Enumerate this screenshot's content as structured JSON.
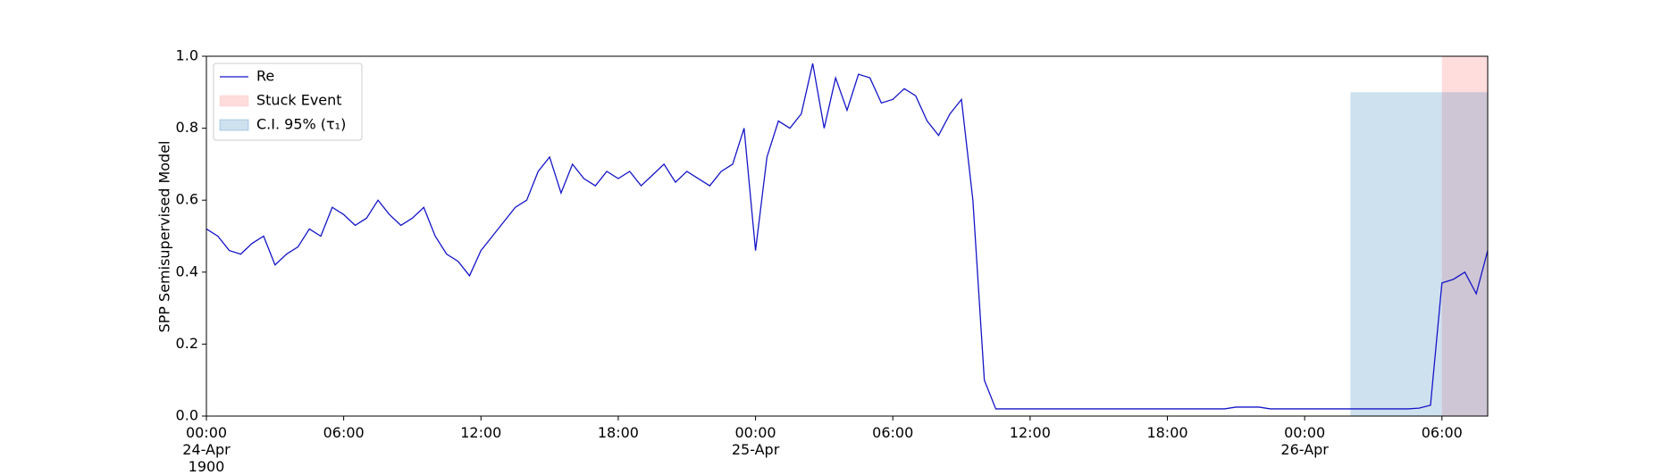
{
  "chart_data": {
    "type": "line",
    "ylabel": "SPP Semisupervised Model",
    "xlim": [
      "1900-04-24T00:00",
      "1900-04-26T08:00"
    ],
    "xticks": [
      {
        "value": "1900-04-24T00:00",
        "label": "00:00\n24-Apr\n1900"
      },
      {
        "value": "1900-04-24T06:00",
        "label": "06:00"
      },
      {
        "value": "1900-04-24T12:00",
        "label": "12:00"
      },
      {
        "value": "1900-04-24T18:00",
        "label": "18:00"
      },
      {
        "value": "1900-04-25T00:00",
        "label": "00:00\n25-Apr"
      },
      {
        "value": "1900-04-25T06:00",
        "label": "06:00"
      },
      {
        "value": "1900-04-25T12:00",
        "label": "12:00"
      },
      {
        "value": "1900-04-25T18:00",
        "label": "18:00"
      },
      {
        "value": "1900-04-26T00:00",
        "label": "00:00\n26-Apr"
      },
      {
        "value": "1900-04-26T06:00",
        "label": "06:00"
      }
    ],
    "ylim": [
      0,
      1
    ],
    "yticks": [
      {
        "value": 0,
        "label": "0.0"
      },
      0.2,
      0.4,
      0.6,
      0.8,
      {
        "value": 1,
        "label": "1.0"
      }
    ],
    "legend": "upper left",
    "x": [
      "1900-04-24T00:00",
      "1900-04-24T00:30",
      "1900-04-24T01:00",
      "1900-04-24T01:30",
      "1900-04-24T02:00",
      "1900-04-24T02:30",
      "1900-04-24T03:00",
      "1900-04-24T03:30",
      "1900-04-24T04:00",
      "1900-04-24T04:30",
      "1900-04-24T05:00",
      "1900-04-24T05:30",
      "1900-04-24T06:00",
      "1900-04-24T06:30",
      "1900-04-24T07:00",
      "1900-04-24T07:30",
      "1900-04-24T08:00",
      "1900-04-24T08:30",
      "1900-04-24T09:00",
      "1900-04-24T09:30",
      "1900-04-24T10:00",
      "1900-04-24T10:30",
      "1900-04-24T11:00",
      "1900-04-24T11:30",
      "1900-04-24T12:00",
      "1900-04-24T12:30",
      "1900-04-24T13:00",
      "1900-04-24T13:30",
      "1900-04-24T14:00",
      "1900-04-24T14:30",
      "1900-04-24T15:00",
      "1900-04-24T15:30",
      "1900-04-24T16:00",
      "1900-04-24T16:30",
      "1900-04-24T17:00",
      "1900-04-24T17:30",
      "1900-04-24T18:00",
      "1900-04-24T18:30",
      "1900-04-24T19:00",
      "1900-04-24T19:30",
      "1900-04-24T20:00",
      "1900-04-24T20:30",
      "1900-04-24T21:00",
      "1900-04-24T21:30",
      "1900-04-24T22:00",
      "1900-04-24T22:30",
      "1900-04-24T23:00",
      "1900-04-24T23:30",
      "1900-04-25T00:00",
      "1900-04-25T00:30",
      "1900-04-25T01:00",
      "1900-04-25T01:30",
      "1900-04-25T02:00",
      "1900-04-25T02:30",
      "1900-04-25T03:00",
      "1900-04-25T03:30",
      "1900-04-25T04:00",
      "1900-04-25T04:30",
      "1900-04-25T05:00",
      "1900-04-25T05:30",
      "1900-04-25T06:00",
      "1900-04-25T06:30",
      "1900-04-25T07:00",
      "1900-04-25T07:30",
      "1900-04-25T08:00",
      "1900-04-25T08:30",
      "1900-04-25T09:00",
      "1900-04-25T09:30",
      "1900-04-25T10:00",
      "1900-04-25T10:30",
      "1900-04-25T11:00",
      "1900-04-25T11:30",
      "1900-04-25T12:00",
      "1900-04-25T12:30",
      "1900-04-25T13:00",
      "1900-04-25T13:30",
      "1900-04-25T14:00",
      "1900-04-25T14:30",
      "1900-04-25T15:00",
      "1900-04-25T15:30",
      "1900-04-25T16:00",
      "1900-04-25T16:30",
      "1900-04-25T17:00",
      "1900-04-25T17:30",
      "1900-04-25T18:00",
      "1900-04-25T18:30",
      "1900-04-25T19:00",
      "1900-04-25T19:30",
      "1900-04-25T20:00",
      "1900-04-25T20:30",
      "1900-04-25T21:00",
      "1900-04-25T21:30",
      "1900-04-25T22:00",
      "1900-04-25T22:30",
      "1900-04-25T23:00",
      "1900-04-25T23:30",
      "1900-04-26T00:00",
      "1900-04-26T00:30",
      "1900-04-26T01:00",
      "1900-04-26T01:30",
      "1900-04-26T02:00",
      "1900-04-26T02:30",
      "1900-04-26T03:00",
      "1900-04-26T03:30",
      "1900-04-26T04:00",
      "1900-04-26T04:30",
      "1900-04-26T05:00",
      "1900-04-26T05:30",
      "1900-04-26T06:00",
      "1900-04-26T06:30",
      "1900-04-26T07:00",
      "1900-04-26T07:30",
      "1900-04-26T08:00"
    ],
    "series": [
      {
        "name": "Re",
        "color": "#1515c8",
        "values": [
          0.52,
          0.5,
          0.46,
          0.45,
          0.48,
          0.5,
          0.42,
          0.45,
          0.47,
          0.52,
          0.5,
          0.58,
          0.56,
          0.53,
          0.55,
          0.6,
          0.56,
          0.53,
          0.55,
          0.58,
          0.5,
          0.45,
          0.43,
          0.39,
          0.46,
          0.5,
          0.54,
          0.58,
          0.6,
          0.68,
          0.72,
          0.62,
          0.7,
          0.66,
          0.64,
          0.68,
          0.66,
          0.68,
          0.64,
          0.67,
          0.7,
          0.65,
          0.68,
          0.66,
          0.64,
          0.68,
          0.7,
          0.8,
          0.46,
          0.72,
          0.82,
          0.8,
          0.84,
          0.98,
          0.8,
          0.94,
          0.85,
          0.95,
          0.94,
          0.87,
          0.88,
          0.91,
          0.89,
          0.82,
          0.78,
          0.84,
          0.88,
          0.6,
          0.1,
          0.02,
          0.02,
          0.02,
          0.02,
          0.02,
          0.02,
          0.02,
          0.02,
          0.02,
          0.02,
          0.02,
          0.02,
          0.02,
          0.02,
          0.02,
          0.02,
          0.02,
          0.02,
          0.02,
          0.02,
          0.02,
          0.025,
          0.025,
          0.025,
          0.02,
          0.02,
          0.02,
          0.02,
          0.02,
          0.02,
          0.02,
          0.02,
          0.02,
          0.02,
          0.02,
          0.02,
          0.02,
          0.022,
          0.03,
          0.37,
          0.38,
          0.4,
          0.34,
          0.46
        ]
      }
    ],
    "regions": [
      {
        "name": "Stuck Event",
        "color": "#ffb3b3",
        "x": [
          "1900-04-26T06:00",
          "1900-04-26T08:00"
        ],
        "y": [
          0,
          1
        ]
      },
      {
        "name": "C.I. 95% (τ₁)",
        "color": "#1f77b4",
        "x": [
          "1900-04-26T02:00",
          "1900-04-26T08:00"
        ],
        "y": [
          0,
          0.9
        ]
      }
    ]
  }
}
